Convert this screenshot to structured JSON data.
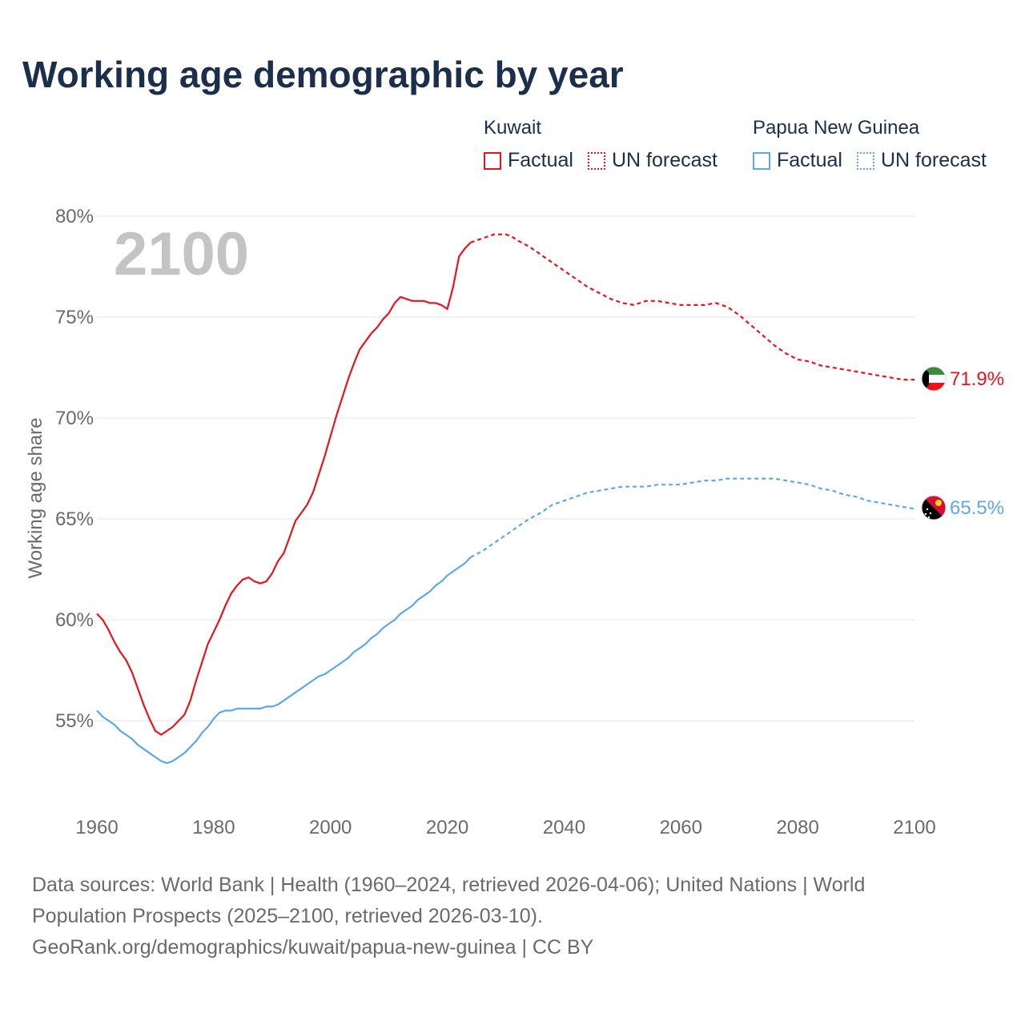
{
  "title": "Working age demographic by year",
  "legend": {
    "kuwait": {
      "country": "Kuwait",
      "factual_label": "Factual",
      "forecast_label": "UN forecast",
      "color": "#e8141b"
    },
    "png": {
      "country": "Papua New Guinea",
      "factual_label": "Factual",
      "forecast_label": "UN forecast",
      "color": "#5ea7e8"
    }
  },
  "footer": {
    "line1": "Data sources: World Bank | Health (1960–2024, retrieved 2026-04-06); United Nations | World",
    "line2": "Population Prospects (2025–2100, retrieved 2026-03-10).",
    "line3": "GeoRank.org/demographics/kuwait/papua-new-guinea | CC BY"
  },
  "chart_data": {
    "type": "line",
    "ylabel": "Working age share",
    "year_label": "2100",
    "xlim": [
      1960,
      2103
    ],
    "ylim": [
      50.5,
      80
    ],
    "x_ticks": [
      1960,
      1980,
      2000,
      2020,
      2040,
      2060,
      2080,
      2100
    ],
    "x_tick_labels": [
      "1960",
      "1980",
      "2000",
      "2020",
      "2040",
      "2060",
      "2080",
      "2100"
    ],
    "y_ticks": [
      55,
      60,
      65,
      70,
      75,
      80
    ],
    "y_tick_labels": [
      "55%",
      "60%",
      "65%",
      "70%",
      "75%",
      "80%"
    ],
    "series": [
      {
        "name": "Kuwait",
        "color": "#e8141b",
        "end_label": "71.9%",
        "end_value": 71.9,
        "factual": {
          "x": [
            1960,
            1961,
            1962,
            1963,
            1964,
            1965,
            1966,
            1967,
            1968,
            1969,
            1970,
            1971,
            1972,
            1973,
            1974,
            1975,
            1976,
            1977,
            1978,
            1979,
            1980,
            1981,
            1982,
            1983,
            1984,
            1985,
            1986,
            1987,
            1988,
            1989,
            1990,
            1991,
            1992,
            1993,
            1994,
            1995,
            1996,
            1997,
            1998,
            1999,
            2000,
            2001,
            2002,
            2003,
            2004,
            2005,
            2006,
            2007,
            2008,
            2009,
            2010,
            2011,
            2012,
            2013,
            2014,
            2015,
            2016,
            2017,
            2018,
            2019,
            2020,
            2021,
            2022,
            2023,
            2024
          ],
          "y": [
            60.3,
            60.0,
            59.5,
            58.9,
            58.4,
            58.0,
            57.4,
            56.6,
            55.8,
            55.1,
            54.5,
            54.3,
            54.5,
            54.7,
            55.0,
            55.3,
            56.0,
            57.0,
            57.9,
            58.8,
            59.4,
            60.0,
            60.7,
            61.3,
            61.7,
            62.0,
            62.1,
            61.9,
            61.8,
            61.9,
            62.3,
            62.9,
            63.3,
            64.1,
            64.9,
            65.3,
            65.7,
            66.3,
            67.2,
            68.1,
            69.1,
            70.1,
            71.0,
            71.9,
            72.7,
            73.4,
            73.8,
            74.2,
            74.5,
            74.9,
            75.2,
            75.7,
            76.0,
            75.9,
            75.8,
            75.8,
            75.8,
            75.7,
            75.7,
            75.6,
            75.4,
            76.5,
            78.0,
            78.4,
            78.7
          ]
        },
        "forecast": {
          "x": [
            2024,
            2025,
            2026,
            2027,
            2028,
            2029,
            2030,
            2031,
            2032,
            2034,
            2036,
            2038,
            2040,
            2042,
            2044,
            2046,
            2048,
            2050,
            2052,
            2054,
            2056,
            2058,
            2060,
            2062,
            2064,
            2066,
            2068,
            2070,
            2072,
            2074,
            2076,
            2078,
            2080,
            2082,
            2084,
            2086,
            2088,
            2090,
            2092,
            2094,
            2096,
            2098,
            2100
          ],
          "y": [
            78.7,
            78.8,
            78.9,
            79.0,
            79.1,
            79.1,
            79.1,
            79.0,
            78.8,
            78.5,
            78.1,
            77.7,
            77.3,
            76.9,
            76.5,
            76.2,
            75.9,
            75.7,
            75.6,
            75.8,
            75.8,
            75.7,
            75.6,
            75.6,
            75.6,
            75.7,
            75.5,
            75.1,
            74.6,
            74.1,
            73.6,
            73.2,
            72.9,
            72.8,
            72.6,
            72.5,
            72.4,
            72.3,
            72.2,
            72.1,
            72.0,
            71.9,
            71.9
          ]
        }
      },
      {
        "name": "Papua New Guinea",
        "color": "#5ea7e8",
        "end_label": "65.5%",
        "end_value": 65.5,
        "factual": {
          "x": [
            1960,
            1961,
            1962,
            1963,
            1964,
            1965,
            1966,
            1967,
            1968,
            1969,
            1970,
            1971,
            1972,
            1973,
            1974,
            1975,
            1976,
            1977,
            1978,
            1979,
            1980,
            1981,
            1982,
            1983,
            1984,
            1985,
            1986,
            1987,
            1988,
            1989,
            1990,
            1991,
            1992,
            1993,
            1994,
            1995,
            1996,
            1997,
            1998,
            1999,
            2000,
            2001,
            2002,
            2003,
            2004,
            2005,
            2006,
            2007,
            2008,
            2009,
            2010,
            2011,
            2012,
            2013,
            2014,
            2015,
            2016,
            2017,
            2018,
            2019,
            2020,
            2021,
            2022,
            2023,
            2024
          ],
          "y": [
            55.5,
            55.2,
            55.0,
            54.8,
            54.5,
            54.3,
            54.1,
            53.8,
            53.6,
            53.4,
            53.2,
            53.0,
            52.9,
            53.0,
            53.2,
            53.4,
            53.7,
            54.0,
            54.4,
            54.7,
            55.1,
            55.4,
            55.5,
            55.5,
            55.6,
            55.6,
            55.6,
            55.6,
            55.6,
            55.7,
            55.7,
            55.8,
            56.0,
            56.2,
            56.4,
            56.6,
            56.8,
            57.0,
            57.2,
            57.3,
            57.5,
            57.7,
            57.9,
            58.1,
            58.4,
            58.6,
            58.8,
            59.1,
            59.3,
            59.6,
            59.8,
            60.0,
            60.3,
            60.5,
            60.7,
            61.0,
            61.2,
            61.4,
            61.7,
            61.9,
            62.2,
            62.4,
            62.6,
            62.8,
            63.1
          ]
        },
        "forecast": {
          "x": [
            2024,
            2026,
            2028,
            2030,
            2032,
            2034,
            2036,
            2038,
            2040,
            2042,
            2044,
            2046,
            2048,
            2050,
            2052,
            2054,
            2056,
            2058,
            2060,
            2062,
            2064,
            2066,
            2068,
            2070,
            2072,
            2074,
            2076,
            2078,
            2080,
            2082,
            2084,
            2086,
            2088,
            2090,
            2092,
            2094,
            2096,
            2098,
            2100
          ],
          "y": [
            63.1,
            63.4,
            63.8,
            64.2,
            64.6,
            65.0,
            65.3,
            65.7,
            65.9,
            66.1,
            66.3,
            66.4,
            66.5,
            66.6,
            66.6,
            66.6,
            66.7,
            66.7,
            66.7,
            66.8,
            66.9,
            66.9,
            67.0,
            67.0,
            67.0,
            67.0,
            67.0,
            66.9,
            66.8,
            66.7,
            66.5,
            66.4,
            66.2,
            66.1,
            65.9,
            65.8,
            65.7,
            65.6,
            65.5
          ]
        }
      }
    ]
  }
}
